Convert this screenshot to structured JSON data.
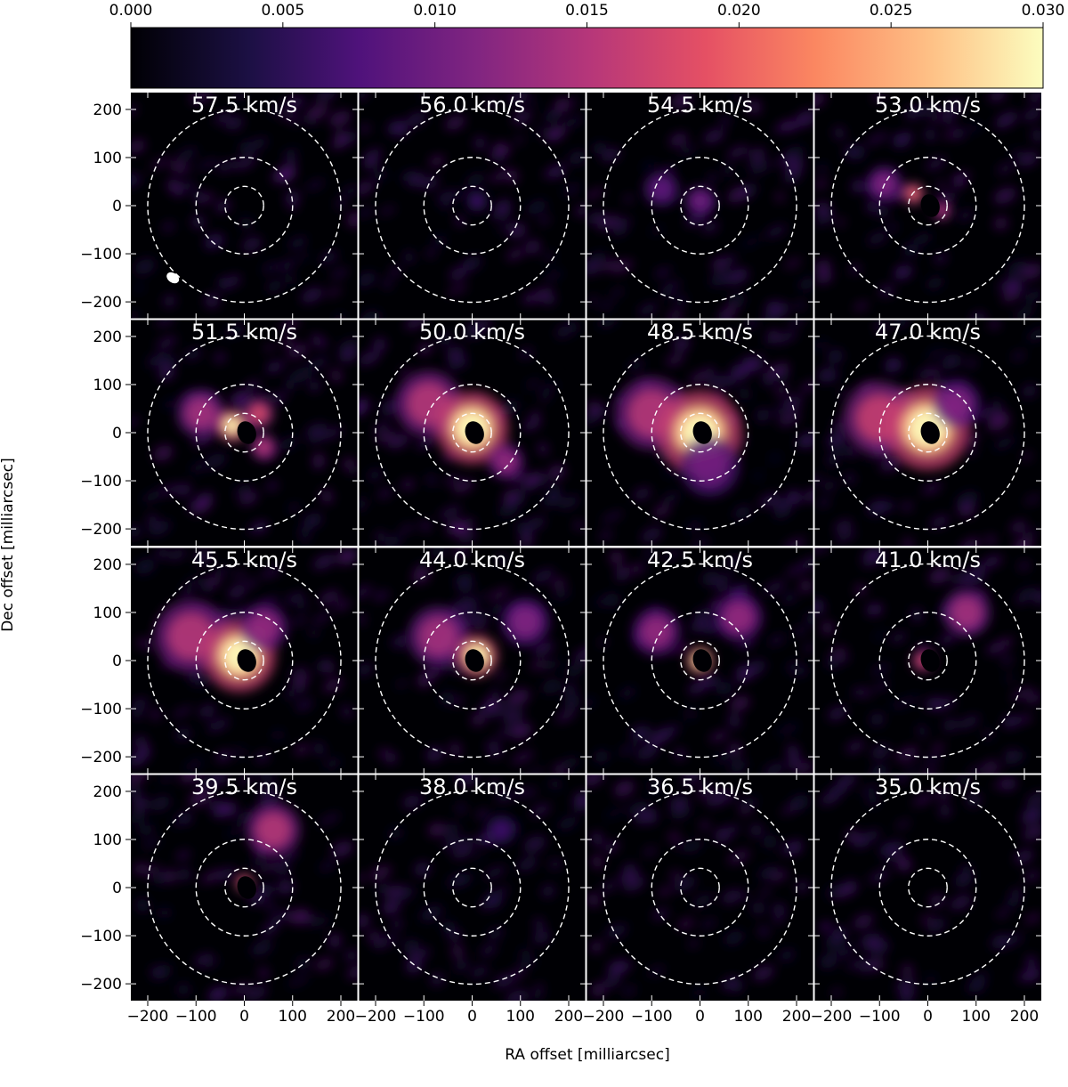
{
  "chart_data": {
    "type": "heatmap",
    "description_free": true,
    "colorbar": {
      "colormap": "magma",
      "range": [
        0.0,
        0.03
      ],
      "ticks": [
        "0.000",
        "0.005",
        "0.010",
        "0.015",
        "0.020",
        "0.025",
        "0.030"
      ],
      "tick_values": [
        0.0,
        0.005,
        0.01,
        0.015,
        0.02,
        0.025,
        0.03
      ],
      "placement": "top"
    },
    "xlabel": "RA offset [milliarcsec]",
    "ylabel": "Dec offset [milliarcsec]",
    "xlim": [
      -235,
      235
    ],
    "ylim": [
      -235,
      235
    ],
    "x_ticks": [
      -200,
      -100,
      0,
      100,
      200
    ],
    "x_tick_labels": [
      "−200",
      "−100",
      "0",
      "100",
      "200"
    ],
    "y_ticks": [
      200,
      100,
      0,
      -100,
      -200
    ],
    "y_tick_labels": [
      "200",
      "100",
      "0",
      "−100",
      "−200"
    ],
    "grid": false,
    "overlay_circle_radii_mas": [
      40,
      100,
      200
    ],
    "beam": {
      "x": -148,
      "y": -150,
      "major": 14,
      "minor": 10,
      "angle_deg": -35
    },
    "panels": [
      {
        "label": "57.5 km/s",
        "intensity": 0.05,
        "blobs": []
      },
      {
        "label": "56.0 km/s",
        "intensity": 0.1,
        "blobs": [
          [
            10,
            10,
            18,
            0.25
          ]
        ]
      },
      {
        "label": "54.5 km/s",
        "intensity": 0.25,
        "blobs": [
          [
            -80,
            35,
            30,
            0.35
          ],
          [
            0,
            10,
            25,
            0.4
          ]
        ]
      },
      {
        "label": "53.0 km/s",
        "intensity": 0.55,
        "blobs": [
          [
            -90,
            45,
            30,
            0.45
          ],
          [
            -30,
            25,
            18,
            0.8
          ],
          [
            30,
            -10,
            16,
            0.6
          ]
        ]
      },
      {
        "label": "51.5 km/s",
        "intensity": 0.8,
        "blobs": [
          [
            -90,
            40,
            40,
            0.55
          ],
          [
            -25,
            15,
            28,
            0.9
          ],
          [
            30,
            40,
            25,
            0.7
          ],
          [
            40,
            -30,
            22,
            0.6
          ]
        ]
      },
      {
        "label": "50.0 km/s",
        "intensity": 1.0,
        "blobs": [
          [
            -90,
            60,
            55,
            0.6
          ],
          [
            0,
            10,
            60,
            1.0
          ],
          [
            70,
            -60,
            30,
            0.5
          ]
        ]
      },
      {
        "label": "48.5 km/s",
        "intensity": 1.0,
        "blobs": [
          [
            -100,
            40,
            60,
            0.6
          ],
          [
            0,
            0,
            70,
            1.0
          ],
          [
            20,
            -70,
            50,
            0.4
          ]
        ]
      },
      {
        "label": "47.0 km/s",
        "intensity": 1.0,
        "blobs": [
          [
            -100,
            30,
            60,
            0.65
          ],
          [
            0,
            10,
            70,
            1.0
          ],
          [
            60,
            60,
            40,
            0.45
          ]
        ]
      },
      {
        "label": "45.5 km/s",
        "intensity": 1.0,
        "blobs": [
          [
            -110,
            50,
            60,
            0.6
          ],
          [
            -10,
            10,
            60,
            1.0
          ],
          [
            40,
            70,
            40,
            0.5
          ]
        ]
      },
      {
        "label": "44.0 km/s",
        "intensity": 0.9,
        "blobs": [
          [
            -70,
            50,
            50,
            0.55
          ],
          [
            10,
            10,
            35,
            1.0
          ],
          [
            110,
            80,
            40,
            0.45
          ]
        ]
      },
      {
        "label": "42.5 km/s",
        "intensity": 0.8,
        "blobs": [
          [
            -90,
            60,
            40,
            0.5
          ],
          [
            0,
            0,
            22,
            1.0
          ],
          [
            80,
            90,
            40,
            0.5
          ]
        ]
      },
      {
        "label": "41.0 km/s",
        "intensity": 0.6,
        "blobs": [
          [
            80,
            100,
            40,
            0.55
          ],
          [
            -10,
            0,
            18,
            0.7
          ]
        ]
      },
      {
        "label": "39.5 km/s",
        "intensity": 0.55,
        "blobs": [
          [
            60,
            120,
            45,
            0.6
          ],
          [
            0,
            10,
            15,
            0.8
          ]
        ]
      },
      {
        "label": "38.0 km/s",
        "intensity": 0.15,
        "blobs": [
          [
            60,
            120,
            25,
            0.25
          ]
        ]
      },
      {
        "label": "36.5 km/s",
        "intensity": 0.05,
        "blobs": []
      },
      {
        "label": "35.0 km/s",
        "intensity": 0.05,
        "blobs": []
      }
    ]
  }
}
